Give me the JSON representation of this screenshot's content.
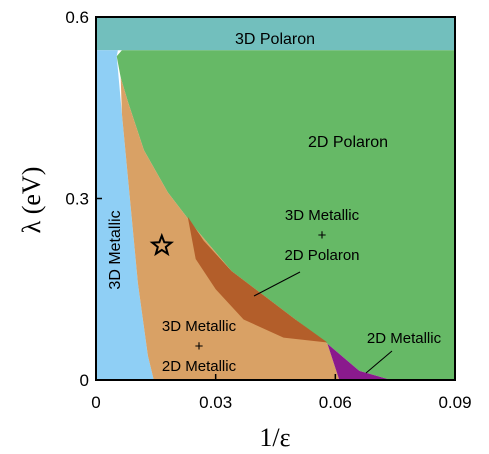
{
  "chart_data": {
    "type": "area",
    "title": "",
    "xlabel": "1/ε",
    "ylabel": "λ (eV)",
    "xlim": [
      0,
      0.09
    ],
    "ylim": [
      0,
      0.6
    ],
    "x_ticks": [
      "0",
      "0.03",
      "0.06",
      "0.09"
    ],
    "y_ticks": [
      "0",
      "0.3",
      "0.6"
    ],
    "grid": false,
    "legend": "none",
    "colors": {
      "polaron3d": "#72bfbd",
      "metallic3d": "#8fcff5",
      "polaron2d": "#66b966",
      "metallic3d_2d": "#d9a165",
      "coexist": "#b35e2a",
      "metallic2d": "#8a1a8d"
    },
    "regions": [
      {
        "name": "3D Polaron",
        "label_lines": [
          "3D Polaron"
        ],
        "color": "#72bfbd",
        "polygon": [
          [
            0,
            0.545
          ],
          [
            0.09,
            0.545
          ],
          [
            0.09,
            0.6
          ],
          [
            0,
            0.6
          ]
        ]
      },
      {
        "name": "3D Metallic",
        "label_lines": [
          "3D Metallic"
        ],
        "color": "#8fcff5",
        "polygon": [
          [
            0,
            0
          ],
          [
            0.0145,
            0
          ],
          [
            0.013,
            0.04
          ],
          [
            0.0105,
            0.16
          ],
          [
            0.0085,
            0.3
          ],
          [
            0.0065,
            0.44
          ],
          [
            0.0052,
            0.535
          ],
          [
            0.0055,
            0.545
          ],
          [
            0,
            0.545
          ]
        ]
      },
      {
        "name": "2D Polaron",
        "label_lines": [
          "2D Polaron"
        ],
        "color": "#66b966",
        "polygon": [
          [
            0.0052,
            0.535
          ],
          [
            0.0065,
            0.545
          ],
          [
            0.09,
            0.545
          ],
          [
            0.09,
            0
          ],
          [
            0.074,
            0
          ],
          [
            0.066,
            0.015
          ],
          [
            0.058,
            0.06
          ],
          [
            0.05,
            0.1
          ],
          [
            0.042,
            0.14
          ],
          [
            0.034,
            0.18
          ],
          [
            0.025,
            0.25
          ],
          [
            0.018,
            0.31
          ],
          [
            0.012,
            0.38
          ],
          [
            0.008,
            0.46
          ],
          [
            0.0062,
            0.5
          ]
        ]
      },
      {
        "name": "3D Metallic + 2D Metallic",
        "label_lines": [
          "3D Metallic",
          "+",
          "2D Metallic"
        ],
        "color": "#d9a165",
        "polygon": [
          [
            0.0065,
            0.44
          ],
          [
            0.0085,
            0.3
          ],
          [
            0.0105,
            0.16
          ],
          [
            0.013,
            0.04
          ],
          [
            0.0145,
            0
          ],
          [
            0.061,
            0
          ],
          [
            0.058,
            0.06
          ],
          [
            0.05,
            0.1
          ],
          [
            0.042,
            0.14
          ],
          [
            0.034,
            0.18
          ],
          [
            0.025,
            0.25
          ],
          [
            0.018,
            0.31
          ],
          [
            0.012,
            0.38
          ],
          [
            0.008,
            0.46
          ],
          [
            0.0062,
            0.5
          ]
        ]
      },
      {
        "name": "3D Metallic + 2D Polaron",
        "label_lines": [
          "3D Metallic",
          "+",
          "2D Polaron"
        ],
        "color": "#b35e2a",
        "polygon": [
          [
            0.023,
            0.27
          ],
          [
            0.025,
            0.2
          ],
          [
            0.03,
            0.15
          ],
          [
            0.037,
            0.1
          ],
          [
            0.047,
            0.07
          ],
          [
            0.058,
            0.062
          ],
          [
            0.05,
            0.1
          ],
          [
            0.042,
            0.14
          ],
          [
            0.034,
            0.18
          ],
          [
            0.027,
            0.23
          ]
        ]
      },
      {
        "name": "2D Metallic",
        "label_lines": [
          "2D Metallic"
        ],
        "color": "#8a1a8d",
        "polygon": [
          [
            0.061,
            0
          ],
          [
            0.074,
            0
          ],
          [
            0.066,
            0.015
          ],
          [
            0.058,
            0.06
          ]
        ]
      }
    ],
    "marker": {
      "type": "star",
      "x": 0.0165,
      "y": 0.222
    }
  }
}
